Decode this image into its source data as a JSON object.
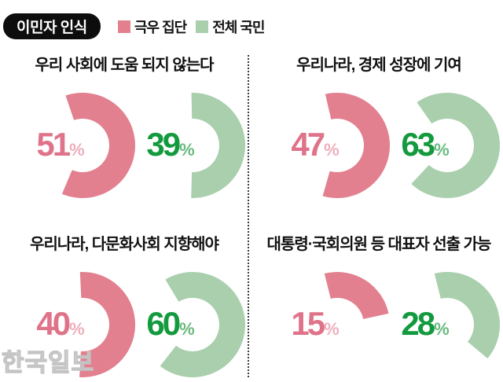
{
  "header": {
    "badge": "이민자 인식",
    "legend": [
      {
        "label": "극우 집단",
        "color_key": "pink"
      },
      {
        "label": "전체 국민",
        "color_key": "green"
      }
    ]
  },
  "watermark": "한국일보",
  "colors": {
    "pink": "#e2808f",
    "green": "#a9cfad",
    "pink_text": "#df7389",
    "pink_pct": "#eeafbc",
    "green_text": "#149a3e",
    "green_pct": "#69ba7e",
    "title_text": "#111111",
    "divider": "#3c3c3c",
    "badge_bg": "#0d0d0d",
    "watermark": "#c4c4c4"
  },
  "chart_data": [
    {
      "type": "donut",
      "title": "우리 사회에 도움 되지 않는다",
      "unit": "%",
      "series": [
        {
          "name": "극우 집단",
          "value": 51,
          "color_key": "pink"
        },
        {
          "name": "전체 국민",
          "value": 39,
          "color_key": "green"
        }
      ]
    },
    {
      "type": "donut",
      "title": "우리나라, 경제 성장에 기여",
      "unit": "%",
      "series": [
        {
          "name": "극우 집단",
          "value": 47,
          "color_key": "pink"
        },
        {
          "name": "전체 국민",
          "value": 63,
          "color_key": "green"
        }
      ]
    },
    {
      "type": "donut",
      "title": "우리나라, 다문화사회 지향해야",
      "unit": "%",
      "series": [
        {
          "name": "극우 집단",
          "value": 40,
          "color_key": "pink"
        },
        {
          "name": "전체 국민",
          "value": 60,
          "color_key": "green"
        }
      ]
    },
    {
      "type": "donut",
      "title": "대통령·국회의원 등 대표자 선출 가능",
      "unit": "%",
      "series": [
        {
          "name": "극우 집단",
          "value": 15,
          "color_key": "pink"
        },
        {
          "name": "전체 국민",
          "value": 28,
          "color_key": "green"
        }
      ]
    }
  ]
}
